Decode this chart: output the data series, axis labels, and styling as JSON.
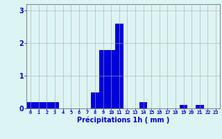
{
  "values": [
    0.2,
    0.2,
    0.2,
    0.2,
    0.0,
    0.0,
    0.0,
    0.0,
    0.5,
    1.8,
    1.8,
    2.6,
    0.0,
    0.0,
    0.2,
    0.0,
    0.0,
    0.0,
    0.0,
    0.1,
    0.0,
    0.1,
    0.0,
    0.0
  ],
  "bar_color": "#0000dd",
  "background_color": "#ddf4f4",
  "xlabel": "Précipitations 1h ( mm )",
  "ylim": [
    0,
    3.2
  ],
  "yticks": [
    0,
    1,
    2,
    3
  ],
  "grid_color": "#aaaaaa",
  "label_color": "#0000cc",
  "figsize": [
    3.2,
    2.0
  ],
  "dpi": 100
}
